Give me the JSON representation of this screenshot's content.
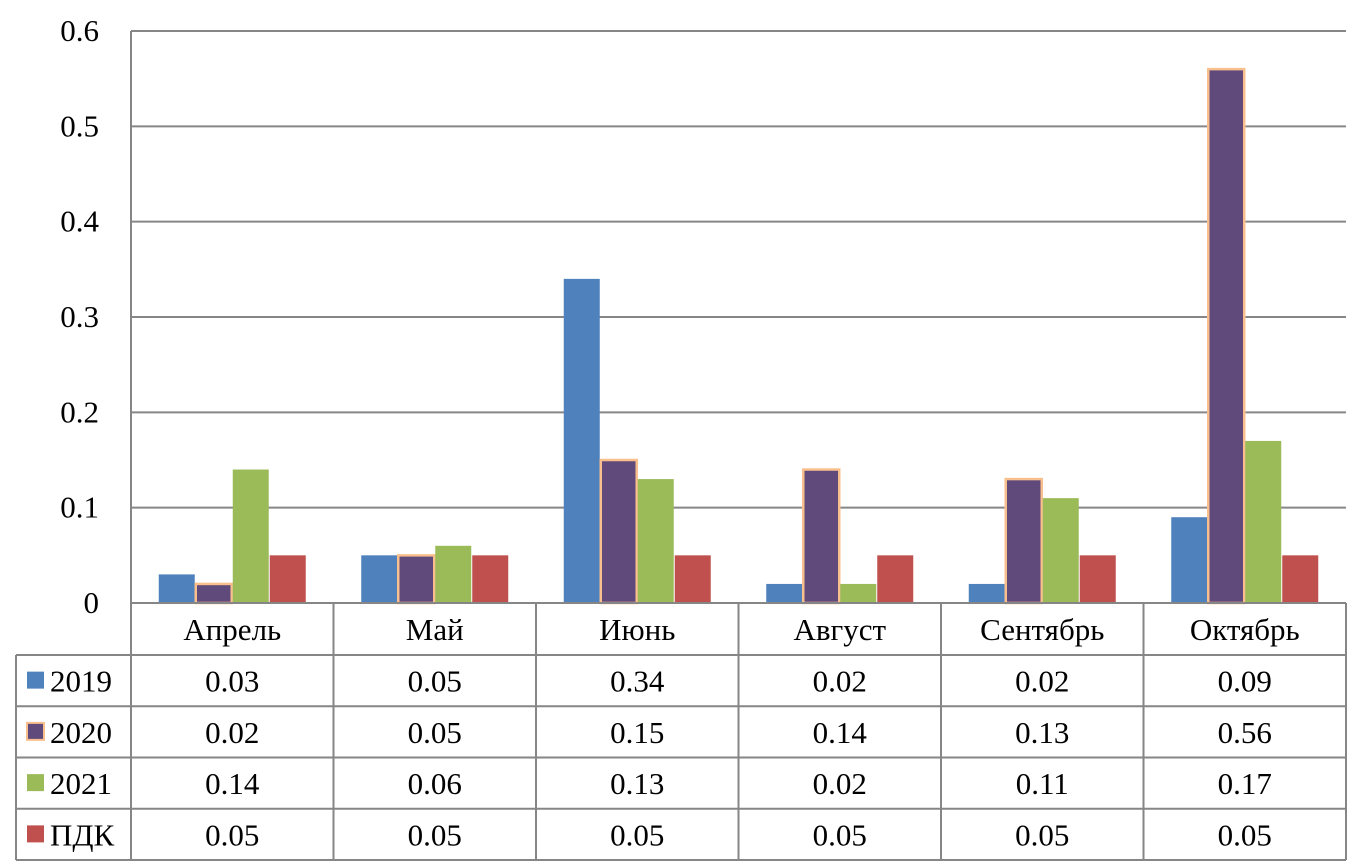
{
  "chart_data": {
    "type": "bar",
    "title": "",
    "xlabel": "",
    "ylabel": "",
    "ylim": [
      0,
      0.6
    ],
    "grid": true,
    "legend": "data-table",
    "y_ticks": [
      "0",
      "0.1",
      "0.2",
      "0.3",
      "0.4",
      "0.5",
      "0.6"
    ],
    "categories": [
      "Апрель",
      "Май",
      "Июнь",
      "Август",
      "Сентябрь",
      "Октябрь"
    ],
    "series": [
      {
        "name": "2019",
        "color": "#4F81BD",
        "border": "#4F81BD",
        "values": [
          0.03,
          0.05,
          0.34,
          0.02,
          0.02,
          0.09
        ],
        "labels": [
          "0.03",
          "0.05",
          "0.34",
          "0.02",
          "0.02",
          "0.09"
        ]
      },
      {
        "name": "2020",
        "color": "#604A7B",
        "border": "#F9C08E",
        "values": [
          0.02,
          0.05,
          0.15,
          0.14,
          0.13,
          0.56
        ],
        "labels": [
          "0.02",
          "0.05",
          "0.15",
          "0.14",
          "0.13",
          "0.56"
        ]
      },
      {
        "name": "2021",
        "color": "#9BBB59",
        "border": "#9BBB59",
        "values": [
          0.14,
          0.06,
          0.13,
          0.02,
          0.11,
          0.17
        ],
        "labels": [
          "0.14",
          "0.06",
          "0.13",
          "0.02",
          "0.11",
          "0.17"
        ]
      },
      {
        "name": "ПДК",
        "color": "#C0504D",
        "border": "#C0504D",
        "values": [
          0.05,
          0.05,
          0.05,
          0.05,
          0.05,
          0.05
        ],
        "labels": [
          "0.05",
          "0.05",
          "0.05",
          "0.05",
          "0.05",
          "0.05"
        ]
      }
    ]
  }
}
